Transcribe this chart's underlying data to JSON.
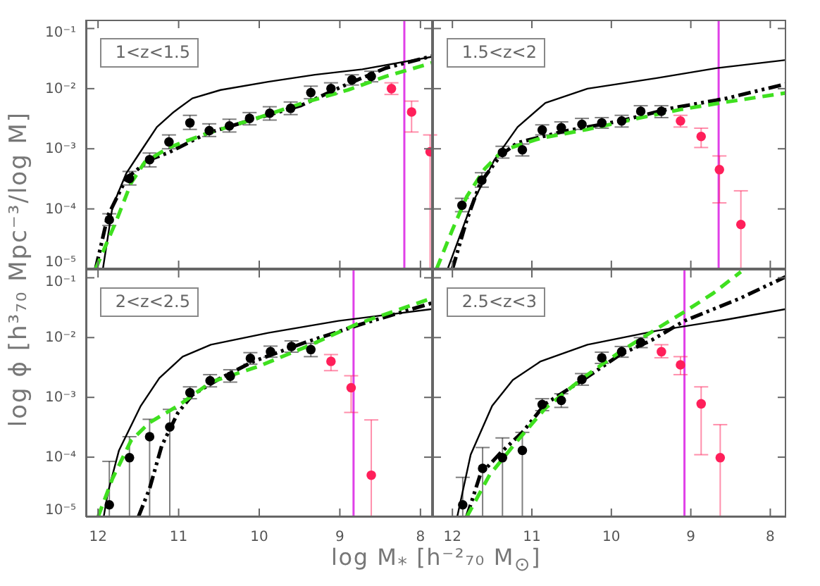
{
  "chart_data": [
    {
      "type": "scatter",
      "title": "1<z<1.5",
      "ylabel": "log ϕ [h³₇₀ Mpc⁻³/log M]",
      "xlim": [
        12.15,
        7.85
      ],
      "xticks": [
        12,
        11,
        10,
        9,
        8
      ],
      "ylim": [
        1e-05,
        0.14
      ],
      "yticks": [
        {
          "value": 1e-05,
          "label": "10⁻⁵"
        },
        {
          "value": 0.0001,
          "label": "10⁻⁴"
        },
        {
          "value": 0.001,
          "label": "10⁻³"
        },
        {
          "value": 0.01,
          "label": "10⁻²"
        },
        {
          "value": 0.1,
          "label": "10⁻¹"
        }
      ],
      "log": "y",
      "tick_labels": "y",
      "series": [
        {
          "color": "#000000",
          "marker": "circle",
          "x": [
            11.86,
            11.61,
            11.36,
            11.12,
            10.86,
            10.62,
            10.37,
            10.12,
            9.87,
            9.61,
            9.36,
            9.11,
            8.85,
            8.61
          ],
          "values": [
            6.6e-05,
            0.00032,
            0.00066,
            0.0013,
            0.0027,
            0.002,
            0.0024,
            0.0032,
            0.0039,
            0.0047,
            0.0086,
            0.01,
            0.014,
            0.016
          ],
          "errors": [
            [
              5.3e-05,
              8.3e-05
            ],
            [
              0.00025,
              0.00042
            ],
            [
              0.0005,
              0.00085
            ],
            [
              0.001,
              0.0017
            ],
            [
              0.0021,
              0.0036
            ],
            [
              0.0016,
              0.0026
            ],
            [
              0.0019,
              0.0031
            ],
            [
              0.0025,
              0.004
            ],
            [
              0.003,
              0.005
            ],
            [
              0.0037,
              0.006
            ],
            [
              0.0068,
              0.011
            ],
            [
              0.0082,
              0.0125
            ],
            [
              0.0115,
              0.017
            ],
            [
              0.013,
              0.0195
            ]
          ]
        },
        {
          "color": "#ff1f5a",
          "marker": "circle",
          "x": [
            8.36,
            8.11,
            7.88
          ],
          "values": [
            0.01,
            0.0041,
            0.00089
          ],
          "errors": [
            [
              0.008,
              0.0125
            ],
            [
              0.0019,
              0.0062
            ],
            [
              1e-05,
              0.0017
            ]
          ]
        },
        {
          "type": "line",
          "color": "#000000",
          "line_style": "solid",
          "marker": "none",
          "x": [
            11.94,
            11.82,
            11.65,
            11.5,
            11.27,
            11.06,
            10.83,
            10.48,
            9.89,
            9.31,
            8.72,
            7.85
          ],
          "values": [
            1e-05,
            0.00011,
            0.00039,
            0.00079,
            0.0023,
            0.0041,
            0.0069,
            0.0095,
            0.013,
            0.017,
            0.021,
            0.034
          ]
        },
        {
          "type": "line",
          "color": "#000000",
          "line_style": "dashdotdot",
          "marker": "none",
          "x": [
            12.03,
            11.88,
            11.65,
            11.36,
            11.12,
            10.65,
            10.07,
            9.49,
            8.9,
            8.43,
            7.85
          ],
          "values": [
            1e-05,
            7.6e-05,
            0.00032,
            0.00066,
            0.00087,
            0.0018,
            0.0031,
            0.0052,
            0.012,
            0.022,
            0.035
          ]
        },
        {
          "type": "line",
          "color": "#3fe01f",
          "line_style": "dashed",
          "marker": "none",
          "x": [
            12.03,
            11.77,
            11.59,
            11.42,
            11.12,
            10.65,
            10.07,
            9.49,
            8.9,
            8.43,
            7.85
          ],
          "values": [
            1e-05,
            6.5e-05,
            0.00027,
            0.0006,
            0.00105,
            0.0018,
            0.0031,
            0.0056,
            0.0095,
            0.016,
            0.027
          ]
        }
      ],
      "ref_lines": [
        {
          "axis": "x",
          "value": 8.2,
          "color": "#e040e8"
        }
      ]
    },
    {
      "type": "scatter",
      "title": "1.5<z<2",
      "xlim": [
        12.25,
        7.8
      ],
      "xticks": [
        12,
        11,
        10,
        9,
        8
      ],
      "ylim": [
        1e-05,
        0.14
      ],
      "yticks": [
        {
          "value": 1e-05,
          "label": null
        },
        {
          "value": 0.0001,
          "label": null
        },
        {
          "value": 0.001,
          "label": null
        },
        {
          "value": 0.01,
          "label": null
        },
        {
          "value": 0.1,
          "label": null
        }
      ],
      "log": "y",
      "tick_labels": false,
      "series": [
        {
          "color": "#000000",
          "marker": "circle",
          "x": [
            11.88,
            11.63,
            11.37,
            11.12,
            10.87,
            10.63,
            10.37,
            10.12,
            9.87,
            9.63,
            9.37
          ],
          "values": [
            0.000115,
            0.0003,
            0.00087,
            0.00096,
            0.00205,
            0.00225,
            0.00255,
            0.0027,
            0.0029,
            0.0042,
            0.0042
          ],
          "errors": [
            [
              9e-05,
              0.00015
            ],
            [
              0.00023,
              0.0004
            ],
            [
              0.0007,
              0.0011
            ],
            [
              0.00076,
              0.0012
            ],
            [
              0.0017,
              0.0025
            ],
            [
              0.0018,
              0.0028
            ],
            [
              0.0021,
              0.0032
            ],
            [
              0.0022,
              0.0033
            ],
            [
              0.0023,
              0.0036
            ],
            [
              0.0034,
              0.0052
            ],
            [
              0.0033,
              0.0052
            ]
          ]
        },
        {
          "color": "#ff1f5a",
          "marker": "circle",
          "x": [
            9.13,
            8.87,
            8.64,
            8.37
          ],
          "values": [
            0.0029,
            0.0016,
            0.00045,
            5.5e-05
          ],
          "errors": [
            [
              0.0023,
              0.0036
            ],
            [
              0.00105,
              0.0022
            ],
            [
              0.000126,
              0.00076
            ],
            [
              1e-05,
              0.0002
            ]
          ]
        },
        {
          "type": "line",
          "color": "#000000",
          "line_style": "solid",
          "marker": "none",
          "x": [
            12.06,
            11.77,
            11.47,
            11.18,
            10.83,
            10.3,
            9.43,
            8.67,
            7.8
          ],
          "values": [
            1e-05,
            0.00011,
            0.00066,
            0.0023,
            0.0058,
            0.01,
            0.015,
            0.022,
            0.03
          ]
        },
        {
          "type": "line",
          "color": "#000000",
          "line_style": "dashdotdot",
          "marker": "none",
          "x": [
            12.0,
            11.82,
            11.65,
            11.39,
            11.18,
            10.6,
            9.89,
            9.25,
            8.55,
            7.8
          ],
          "values": [
            1e-05,
            6.5e-05,
            0.00027,
            0.00079,
            0.00126,
            0.00195,
            0.0029,
            0.0047,
            0.0069,
            0.012
          ]
        },
        {
          "type": "line",
          "color": "#3fe01f",
          "line_style": "dashed",
          "marker": "none",
          "x": [
            12.2,
            12.0,
            11.82,
            11.59,
            11.36,
            10.89,
            10.3,
            9.72,
            9.13,
            8.55,
            7.8
          ],
          "values": [
            1e-05,
            4.5e-05,
            0.00016,
            0.00047,
            0.00095,
            0.0015,
            0.0021,
            0.0031,
            0.0045,
            0.006,
            0.0085
          ]
        }
      ],
      "ref_lines": [
        {
          "axis": "x",
          "value": 8.65,
          "color": "#e040e8"
        }
      ]
    },
    {
      "type": "scatter",
      "title": "2<z<2.5",
      "xlabel": "log M$_{*}$ [h⁻²₇₀ M$_{⊙}$]",
      "xlim": [
        12.15,
        7.85
      ],
      "xticks": [
        12,
        11,
        10,
        9,
        8
      ],
      "ylim": [
        1e-05,
        0.14
      ],
      "yticks": [
        {
          "value": 1e-05,
          "label": "10⁻⁵"
        },
        {
          "value": 0.0001,
          "label": "10⁻⁴"
        },
        {
          "value": 0.001,
          "label": "10⁻³"
        },
        {
          "value": 0.01,
          "label": "10⁻²"
        },
        {
          "value": 0.1,
          "label": "10⁻¹"
        }
      ],
      "log": "y",
      "series": [
        {
          "color": "#000000",
          "marker": "circle",
          "x": [
            11.86,
            11.61,
            11.36,
            11.11,
            10.86,
            10.61,
            10.36,
            10.11,
            9.86,
            9.6,
            9.36
          ],
          "values": [
            1.6e-05,
            9.8e-05,
            0.00022,
            0.00032,
            0.0012,
            0.0019,
            0.00225,
            0.0045,
            0.0058,
            0.0071,
            0.0063
          ],
          "errors": [
            [
              1e-05,
              8.5e-05
            ],
            [
              1e-05,
              0.00022
            ],
            [
              1e-05,
              0.00043
            ],
            [
              1e-05,
              0.00063
            ],
            [
              0.00095,
              0.0015
            ],
            [
              0.0015,
              0.0024
            ],
            [
              0.0018,
              0.0029
            ],
            [
              0.0036,
              0.0056
            ],
            [
              0.0047,
              0.0072
            ],
            [
              0.0057,
              0.0088
            ],
            [
              0.0048,
              0.008
            ]
          ]
        },
        {
          "color": "#ff1f5a",
          "marker": "circle",
          "x": [
            9.11,
            8.86,
            8.61
          ],
          "values": [
            0.004,
            0.00145,
            5e-05
          ],
          "errors": [
            [
              0.0028,
              0.0052
            ],
            [
              0.00056,
              0.0023
            ],
            [
              1e-05,
              0.00042
            ]
          ]
        },
        {
          "type": "line",
          "color": "#000000",
          "line_style": "solid",
          "marker": "none",
          "x": [
            11.93,
            11.88,
            11.74,
            11.47,
            11.24,
            10.95,
            10.6,
            9.89,
            9.02,
            7.85
          ],
          "values": [
            1e-05,
            2.5e-05,
            0.00013,
            0.00072,
            0.0021,
            0.0048,
            0.0076,
            0.012,
            0.019,
            0.03
          ]
        },
        {
          "type": "line",
          "color": "#000000",
          "line_style": "dashdotdot",
          "marker": "none",
          "x": [
            11.5,
            11.36,
            11.21,
            11.01,
            10.83,
            10.48,
            10.07,
            9.43,
            8.72,
            7.85
          ],
          "values": [
            1e-05,
            3e-05,
            0.000155,
            0.00055,
            0.0011,
            0.0021,
            0.004,
            0.0083,
            0.017,
            0.038
          ]
        },
        {
          "type": "line",
          "color": "#3fe01f",
          "line_style": "dashed",
          "marker": "none",
          "x": [
            12.0,
            11.82,
            11.59,
            11.36,
            11.01,
            10.6,
            10.01,
            9.43,
            8.78,
            7.85
          ],
          "values": [
            1e-05,
            4.4e-05,
            0.00019,
            0.00038,
            0.00072,
            0.0018,
            0.0033,
            0.0069,
            0.017,
            0.046
          ]
        }
      ],
      "ref_lines": [
        {
          "axis": "x",
          "value": 8.83,
          "color": "#e040e8"
        }
      ]
    },
    {
      "type": "scatter",
      "title": "2.5<z<3",
      "xlim": [
        12.25,
        7.8
      ],
      "xticks": [
        12,
        11,
        10,
        9,
        8
      ],
      "ylim": [
        1e-05,
        0.14
      ],
      "yticks": [
        {
          "value": 1e-05,
          "label": null
        },
        {
          "value": 0.0001,
          "label": null
        },
        {
          "value": 0.001,
          "label": null
        },
        {
          "value": 0.01,
          "label": null
        },
        {
          "value": 0.1,
          "label": null
        }
      ],
      "log": "y",
      "tick_labels": "x",
      "series": [
        {
          "color": "#000000",
          "marker": "circle",
          "x": [
            11.87,
            11.62,
            11.37,
            11.12,
            10.87,
            10.63,
            10.37,
            10.12,
            9.87,
            9.63
          ],
          "values": [
            1.6e-05,
            6.5e-05,
            9.8e-05,
            0.00013,
            0.00076,
            0.00089,
            0.002,
            0.0046,
            0.0058,
            0.0083
          ],
          "errors": [
            [
              1e-05,
              4.6e-05
            ],
            [
              1e-05,
              0.000145
            ],
            [
              1e-05,
              0.00021
            ],
            [
              1e-05,
              0.00026
            ],
            [
              0.0006,
              0.00095
            ],
            [
              0.00068,
              0.00115
            ],
            [
              0.0016,
              0.0025
            ],
            [
              0.0037,
              0.0057
            ],
            [
              0.0047,
              0.0071
            ],
            [
              0.0068,
              0.01
            ]
          ]
        },
        {
          "color": "#ff1f5a",
          "marker": "circle",
          "x": [
            9.37,
            9.13,
            8.87,
            8.63
          ],
          "values": [
            0.0058,
            0.0035,
            0.00078,
            9.8e-05
          ],
          "errors": [
            [
              0.0046,
              0.0076
            ],
            [
              0.0024,
              0.0048
            ],
            [
              0.00011,
              0.0015
            ],
            [
              1e-05,
              0.00035
            ]
          ]
        },
        {
          "type": "line",
          "color": "#000000",
          "line_style": "solid",
          "marker": "none",
          "x": [
            11.94,
            11.77,
            11.5,
            11.24,
            10.89,
            10.3,
            9.43,
            8.55,
            7.8
          ],
          "values": [
            1e-05,
            0.00011,
            0.00072,
            0.00195,
            0.004,
            0.0076,
            0.013,
            0.02,
            0.03
          ]
        },
        {
          "type": "line",
          "color": "#000000",
          "line_style": "dashdotdot",
          "marker": "none",
          "x": [
            11.82,
            11.65,
            11.39,
            11.12,
            10.83,
            10.36,
            9.89,
            9.49,
            9.08,
            8.37,
            7.8
          ],
          "values": [
            1e-05,
            5.1e-05,
            0.00012,
            0.00026,
            0.00078,
            0.00195,
            0.0052,
            0.0091,
            0.019,
            0.046,
            0.105
          ]
        },
        {
          "type": "line",
          "color": "#3fe01f",
          "line_style": "dashed",
          "marker": "none",
          "x": [
            11.82,
            11.53,
            11.18,
            10.83,
            10.36,
            9.89,
            9.43,
            9.08,
            8.72,
            8.37
          ],
          "values": [
            1e-05,
            5.1e-05,
            0.00019,
            0.00066,
            0.0021,
            0.0058,
            0.014,
            0.027,
            0.055,
            0.126
          ]
        }
      ],
      "ref_lines": [
        {
          "axis": "x",
          "value": 9.08,
          "color": "#e040e8"
        }
      ]
    }
  ]
}
